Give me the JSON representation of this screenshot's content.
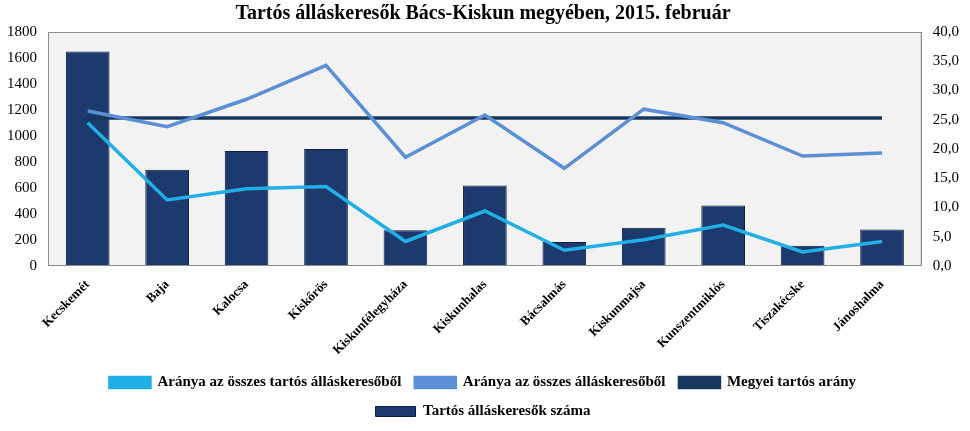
{
  "chart_data": {
    "type": "bar",
    "title": "Tartós álláskeresők Bács-Kiskun megyében, 2015. február",
    "categories": [
      "Kecskemét",
      "Baja",
      "Kalocsa",
      "Kiskőrös",
      "Kiskunfélegyháza",
      "Kiskunhalas",
      "Bácsalmás",
      "Kiskunmajsa",
      "Kunszentmiklós",
      "Tiszakécske",
      "Jánoshalma"
    ],
    "series": [
      {
        "name": "Tartós álláskeresők száma",
        "type": "bar",
        "color": "#1c3a6e",
        "values": [
          1650,
          740,
          885,
          900,
          275,
          620,
          185,
          295,
          465,
          155,
          280
        ]
      },
      {
        "name": "Aránya az összes tartós álláskeresőből",
        "type": "line",
        "axis": "y2",
        "color": "#22aee6",
        "marker": "none",
        "values": [
          24.5,
          11.3,
          13.2,
          13.6,
          4.2,
          9.4,
          2.7,
          4.5,
          7.0,
          2.4,
          4.2
        ]
      },
      {
        "name": "Aránya az összes álláskeresőből",
        "type": "line",
        "axis": "y2",
        "color": "#5b8fd6",
        "marker": "none",
        "values": [
          26.5,
          23.8,
          28.5,
          34.3,
          18.6,
          25.8,
          16.7,
          26.8,
          24.5,
          18.8,
          19.3
        ]
      },
      {
        "name": "Megyei tartós arány",
        "type": "line",
        "axis": "y2",
        "color": "#17375e",
        "marker": "none",
        "values": [
          25.3,
          25.3,
          25.3,
          25.3,
          25.3,
          25.3,
          25.3,
          25.3,
          25.3,
          25.3,
          25.3
        ]
      }
    ],
    "ylim": [
      0,
      1800
    ],
    "yticks": [
      0,
      200,
      400,
      600,
      800,
      1000,
      1200,
      1400,
      1600,
      1800
    ],
    "y2lim": [
      0,
      40
    ],
    "y2ticks": [
      {
        "value": 0,
        "label": "0,0"
      },
      {
        "value": 5,
        "label": "5,0"
      },
      {
        "value": 10,
        "label": "10,0"
      },
      {
        "value": 15,
        "label": "15,0"
      },
      {
        "value": 20,
        "label": "20,0"
      },
      {
        "value": 25,
        "label": "25,0"
      },
      {
        "value": 30,
        "label": "30,0"
      },
      {
        "value": 35,
        "label": "35,0"
      },
      {
        "value": 40,
        "label": "40,0"
      }
    ],
    "grid": false,
    "legend": "bottom"
  }
}
